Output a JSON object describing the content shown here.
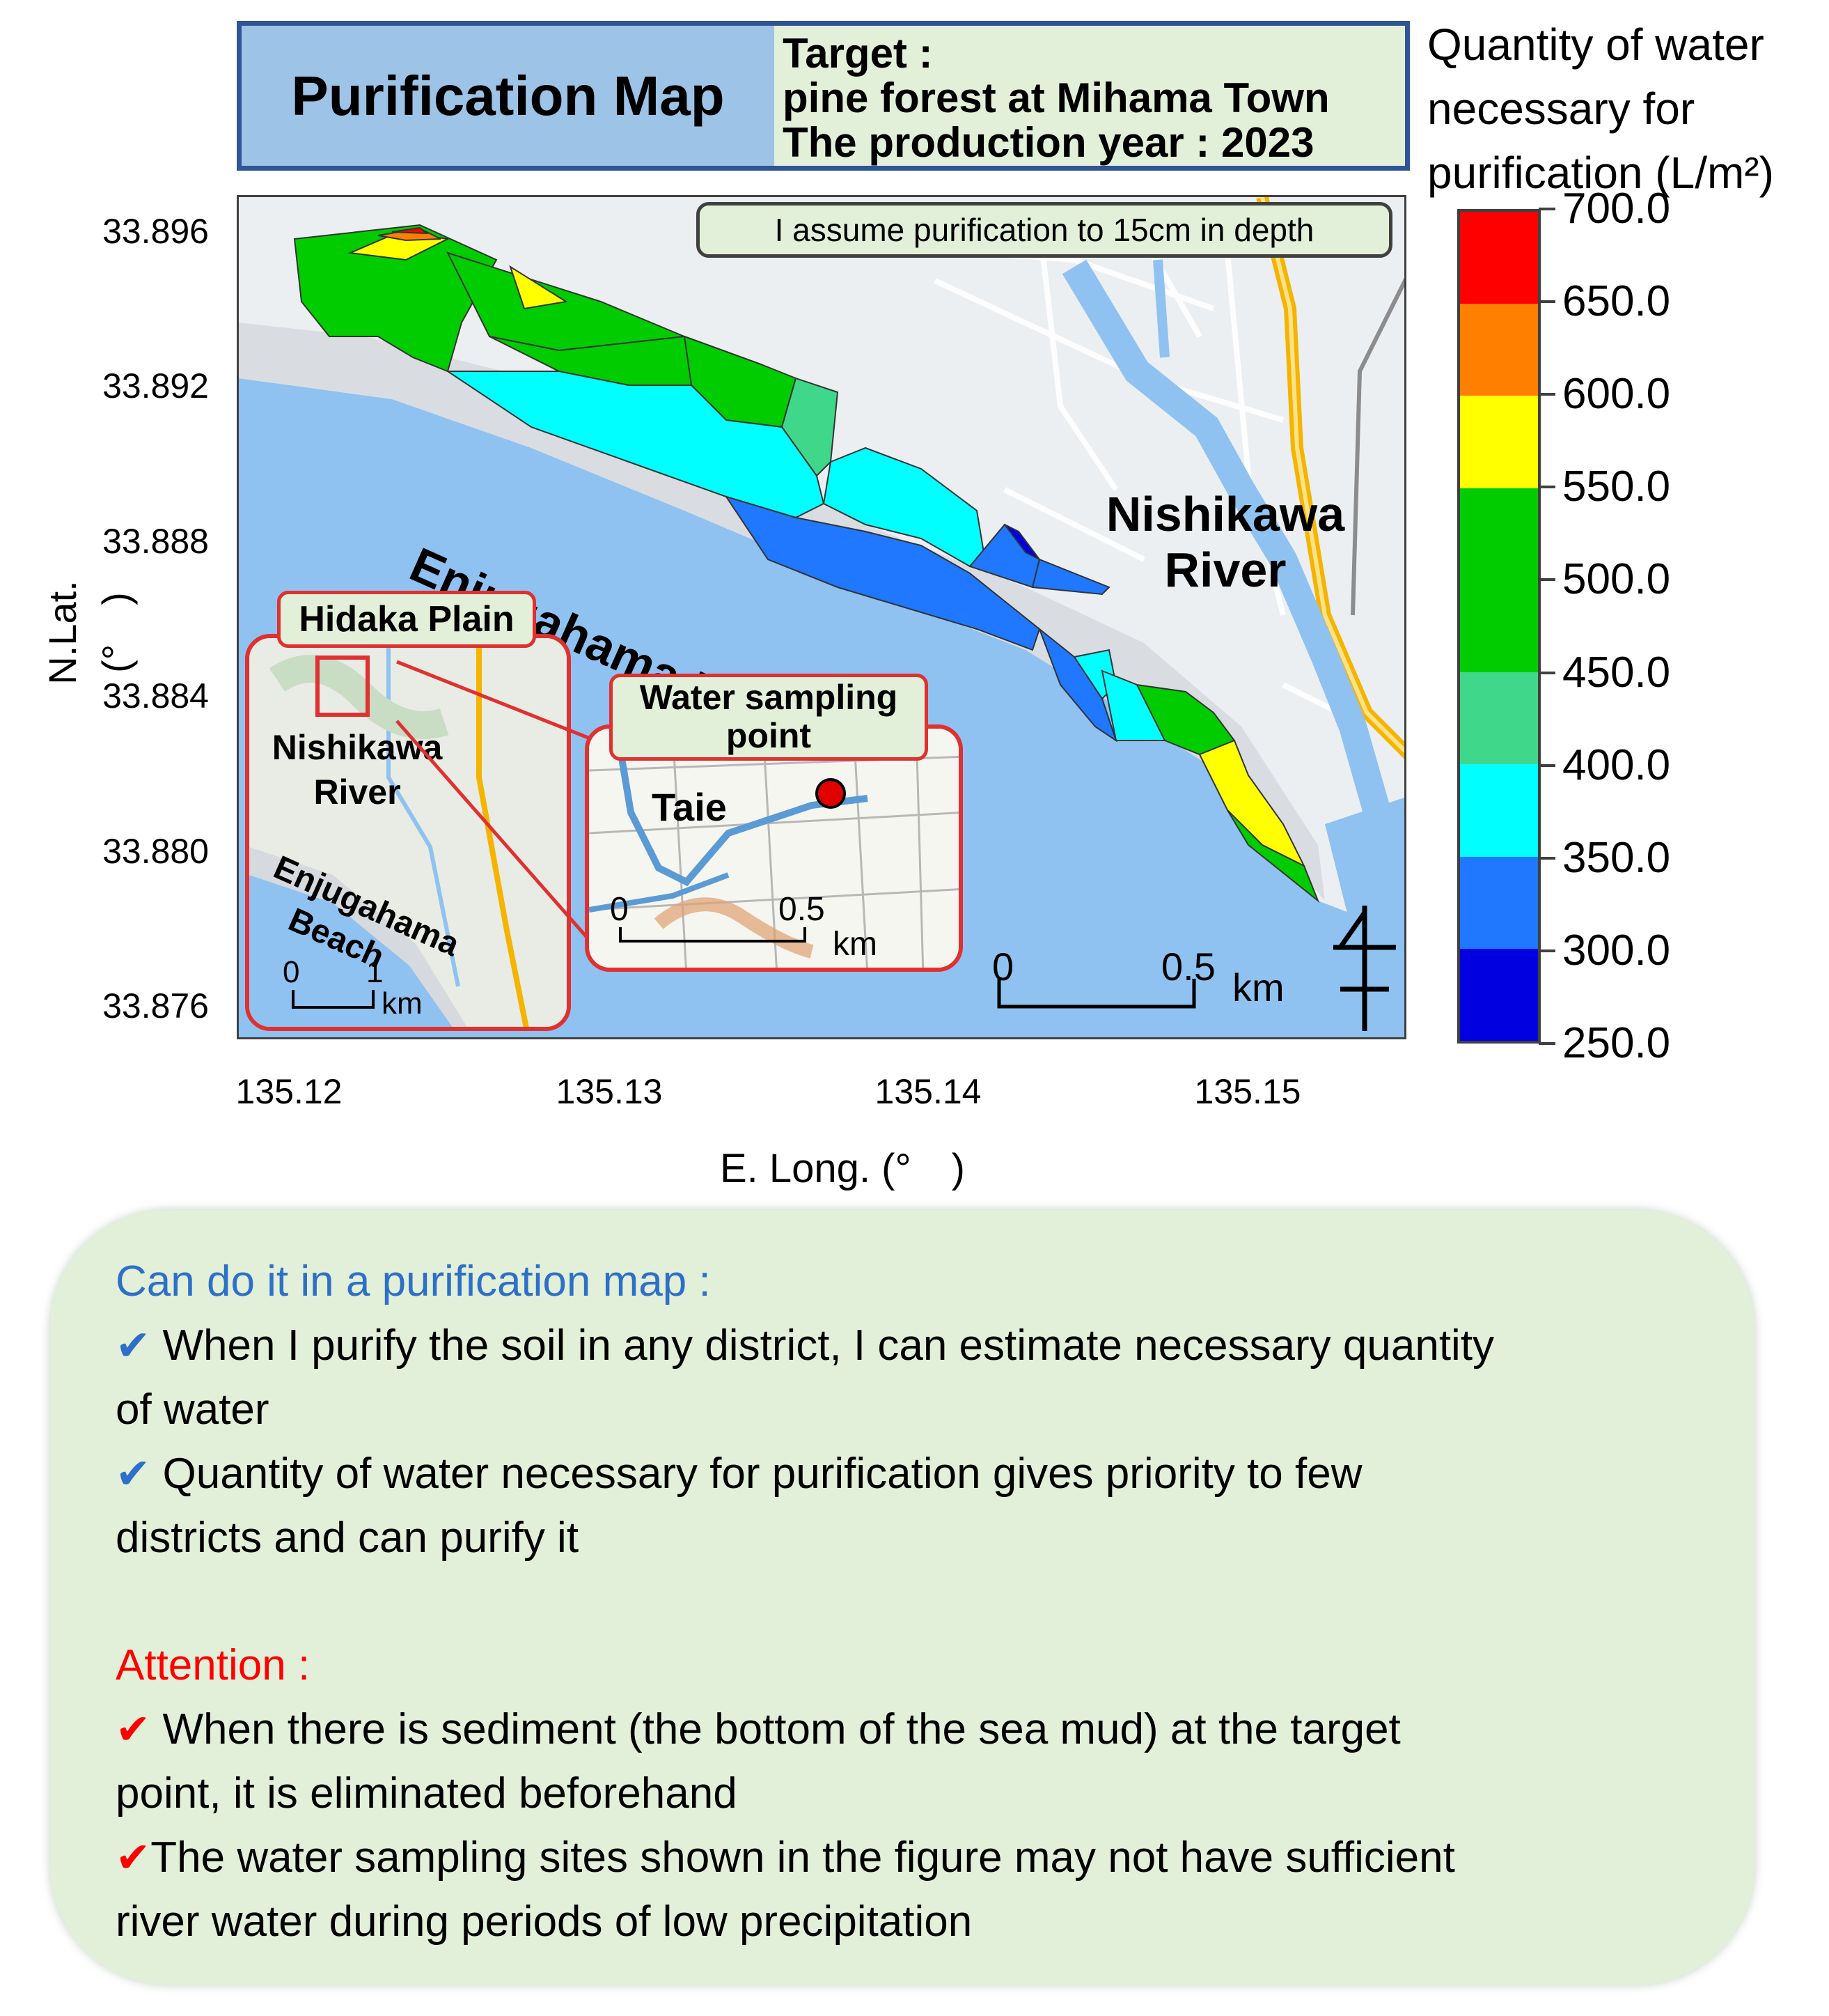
{
  "title": {
    "main": "Purification Map",
    "target_line1": "Target :",
    "target_line2": "pine forest at Mihama Town",
    "target_line3": "The production year : 2023"
  },
  "colorbar": {
    "title_line1": "Quantity of water",
    "title_line2": "necessary for",
    "title_line3": "purification (L/m²)",
    "labels": [
      "700.0",
      "650.0",
      "600.0",
      "550.0",
      "500.0",
      "450.0",
      "400.0",
      "350.0",
      "300.0",
      "250.0"
    ],
    "colors": [
      "#ff0000",
      "#ff7f00",
      "#ffff00",
      "#00cc00",
      "#3fd88a",
      "#00ffff",
      "#1f78ff",
      "#0000e0"
    ]
  },
  "map": {
    "depth_note": "I assume purification to 15cm in depth",
    "beach_label": "Enjugahama Beach",
    "river_label_line1": "Nishikawa",
    "river_label_line2": "River",
    "scale_zero": "0",
    "scale_value": "0.5",
    "scale_unit": "km",
    "xlabel": "E. Long. (°　)",
    "ylabel": "N.Lat. (°　)",
    "x_ticks": [
      "135.12",
      "135.13",
      "135.14",
      "135.15"
    ],
    "y_ticks": [
      "33.896",
      "33.892",
      "33.888",
      "33.884",
      "33.880",
      "33.876"
    ],
    "inset1": {
      "label": "Hidaka Plain",
      "river_line1": "Nishikawa",
      "river_line2": "River",
      "beach_line1": "Enjugahama",
      "beach_line2": "Beach",
      "scale_zero": "0",
      "scale_value": "1",
      "scale_unit": "km"
    },
    "inset2": {
      "label_line1": "Water sampling",
      "label_line2": "point",
      "place": "Taie",
      "scale_zero": "0",
      "scale_value": "0.5",
      "scale_unit": "km"
    }
  },
  "info": {
    "heading": "Can do it in a purification map :",
    "item1": "When I purify the soil in any district, I can estimate necessary quantity",
    "item1b": "of water",
    "item2": "Quantity of water necessary for purification gives priority to few",
    "item2b": "districts and can purify it",
    "attention_heading": "Attention :",
    "att1": "When there is sediment (the bottom of the sea mud) at the target",
    "att1b": "point, it is eliminated beforehand",
    "att2": "The water sampling sites shown in the figure may not have sufficient",
    "att2b": "river water during periods of low precipitation",
    "check_symbol": "✔",
    "heading_color": "#2e6fc7",
    "attention_color": "#ff0000"
  }
}
